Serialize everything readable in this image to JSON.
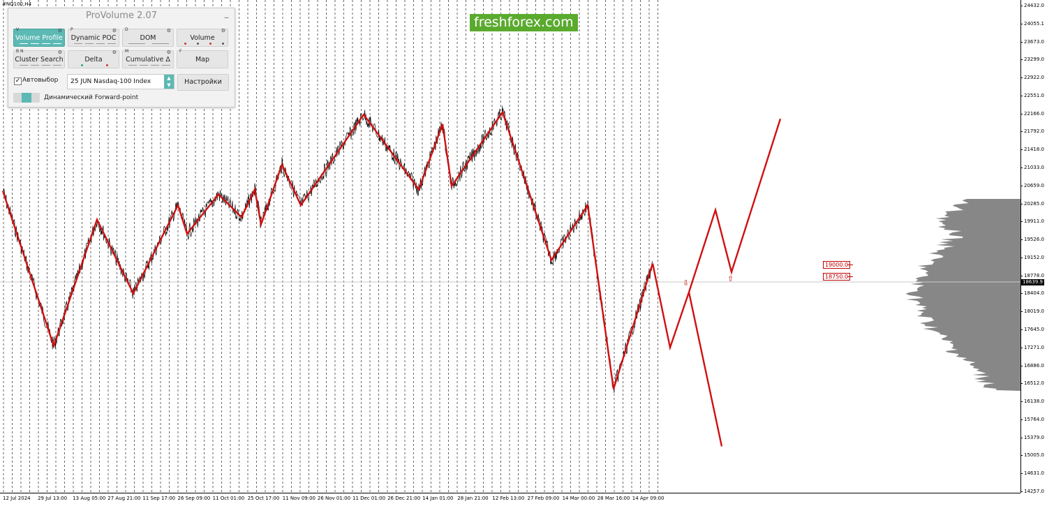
{
  "symbol": "#NQ100,H4",
  "watermark": "freshforex.com",
  "current_price": "18639.9",
  "price_ticks": [
    "24432.0",
    "24055.1",
    "23673.0",
    "23299.0",
    "22922.0",
    "22551.0",
    "22166.0",
    "21792.0",
    "21418.0",
    "21033.0",
    "20659.0",
    "20285.0",
    "19911.0",
    "19526.0",
    "19152.0",
    "18778.0",
    "18404.0",
    "18019.0",
    "17645.0",
    "17271.0",
    "16886.0",
    "16512.0",
    "16138.0",
    "15764.0",
    "15379.0",
    "15005.0",
    "14631.0",
    "14257.0"
  ],
  "time_ticks": [
    "12 Jul 2024",
    "29 Jul 13:00",
    "13 Aug 05:00",
    "27 Aug 21:00",
    "11 Sep 17:00",
    "26 Sep 09:00",
    "11 Oct 01:00",
    "25 Oct 17:00",
    "11 Nov 09:00",
    "26 Nov 01:00",
    "11 Dec 01:00",
    "26 Dec 21:00",
    "14 Jan 01:00",
    "28 Jan 21:00",
    "12 Feb 13:00",
    "27 Feb 09:00",
    "14 Mar 00:00",
    "28 Mar 16:00",
    "14 Apr 09:00"
  ],
  "levels": [
    {
      "label": "19000.0",
      "price": 19000.0
    },
    {
      "label": "18750.0",
      "price": 18750.0
    }
  ],
  "panel": {
    "title": "ProVolume 2.07",
    "minimize": "_",
    "buttons": [
      {
        "label": "Volume Profile",
        "hotkey": "V",
        "active": true
      },
      {
        "label": "Dynamic POC",
        "hotkey": "P",
        "active": false
      },
      {
        "label": "DOM",
        "hotkey": "D",
        "active": false
      },
      {
        "label": "Volume",
        "hotkey": "",
        "active": false
      },
      {
        "label": "Cluster Search",
        "hotkey": "B N",
        "active": false
      },
      {
        "label": "Delta",
        "hotkey": "",
        "active": false
      },
      {
        "label": "Cumulative Δ",
        "hotkey": "M",
        "active": false
      },
      {
        "label": "Map",
        "hotkey": "F",
        "active": false
      }
    ],
    "gear_glyph": "⚙",
    "auto_check_mark": "✓",
    "auto_label": "Автовыбор",
    "instrument": "25 JUN Nasdaq-100 Index",
    "settings_label": "Настройки",
    "forward_label": "Динамический Forward-point"
  },
  "colors": {
    "accent": "#5cb9b4",
    "zigzag": "#d01010",
    "watermark_bg": "#5aaa2e",
    "profile": "#7a7a7a"
  },
  "icons": {
    "zoom": "zoom-in-icon",
    "arrow_up": "up-arrow-icon",
    "arrow_down": "down-arrow-icon"
  },
  "chart_data": {
    "type": "line",
    "title": "",
    "x_labels": [
      "12 Jul 2024",
      "29 Jul 13:00",
      "13 Aug 05:00",
      "27 Aug 21:00",
      "11 Sep 17:00",
      "26 Sep 09:00",
      "11 Oct 01:00",
      "25 Oct 17:00",
      "11 Nov 09:00",
      "26 Nov 01:00",
      "11 Dec 01:00",
      "26 Dec 21:00",
      "14 Jan 01:00",
      "28 Jan 21:00",
      "12 Feb 13:00",
      "27 Feb 09:00",
      "14 Mar 00:00",
      "28 Mar 16:00",
      "14 Apr 09:00"
    ],
    "ylim": [
      14257.0,
      24432.0
    ],
    "zigzag_prices": [
      20550,
      17300,
      19950,
      18400,
      20250,
      19650,
      20480,
      20000,
      20580,
      19850,
      21100,
      20250,
      22150,
      20580,
      21950,
      20650,
      22200,
      19100,
      20250,
      16400,
      19030
    ],
    "forecast_prices": [
      19030,
      17270,
      18430,
      20150,
      18850,
      22060
    ],
    "forecast_alt_prices": [
      18430,
      15200
    ]
  }
}
